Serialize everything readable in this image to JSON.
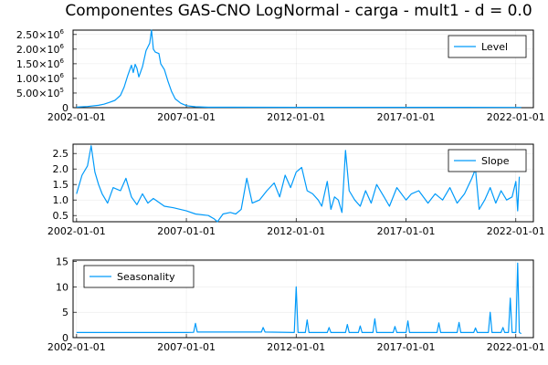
{
  "chart_data": [
    {
      "type": "line",
      "title": "Componentes GAS-CNO LogNormal - carga - mult1 - d = 0.0",
      "xlabel": "",
      "ylabel": "",
      "x_range": [
        "2002-01-01",
        "2022-01-01"
      ],
      "x_ticks": [
        "2002-01-01",
        "2007-01-01",
        "2012-01-01",
        "2017-01-01",
        "2022-01-01"
      ],
      "ylim": [
        0,
        2650000
      ],
      "y_ticks": [
        {
          "value": 0,
          "label": "0"
        },
        {
          "value": 500000,
          "label": "5.00×10",
          "exp": "5"
        },
        {
          "value": 1000000,
          "label": "1.00×10",
          "exp": "6"
        },
        {
          "value": 1500000,
          "label": "1.50×10",
          "exp": "6"
        },
        {
          "value": 2000000,
          "label": "2.00×10",
          "exp": "6"
        },
        {
          "value": 2500000,
          "label": "2.50×10",
          "exp": "6"
        }
      ],
      "grid": true,
      "legend_position": "top-right",
      "series": [
        {
          "name": "Level",
          "color": "#009AFA",
          "points": [
            [
              "2002-01-01",
              20000
            ],
            [
              "2002-07-01",
              40000
            ],
            [
              "2003-01-01",
              80000
            ],
            [
              "2003-04-01",
              120000
            ],
            [
              "2003-07-01",
              180000
            ],
            [
              "2003-10-01",
              250000
            ],
            [
              "2004-01-01",
              420000
            ],
            [
              "2004-03-01",
              700000
            ],
            [
              "2004-05-01",
              1100000
            ],
            [
              "2004-07-01",
              1450000
            ],
            [
              "2004-08-01",
              1200000
            ],
            [
              "2004-09-01",
              1480000
            ],
            [
              "2004-10-01",
              1350000
            ],
            [
              "2004-11-01",
              1050000
            ],
            [
              "2005-01-01",
              1400000
            ],
            [
              "2005-03-01",
              1950000
            ],
            [
              "2005-05-01",
              2200000
            ],
            [
              "2005-06-01",
              2650000
            ],
            [
              "2005-07-01",
              2000000
            ],
            [
              "2005-08-01",
              1900000
            ],
            [
              "2005-10-01",
              1850000
            ],
            [
              "2005-11-01",
              1500000
            ],
            [
              "2006-01-01",
              1300000
            ],
            [
              "2006-03-01",
              900000
            ],
            [
              "2006-05-01",
              550000
            ],
            [
              "2006-07-01",
              300000
            ],
            [
              "2006-10-01",
              150000
            ],
            [
              "2007-01-01",
              70000
            ],
            [
              "2007-06-01",
              30000
            ],
            [
              "2008-01-01",
              15000
            ],
            [
              "2012-01-01",
              12000
            ],
            [
              "2017-01-01",
              11000
            ],
            [
              "2022-01-01",
              10000
            ],
            [
              "2022-04-01",
              10000
            ]
          ]
        }
      ]
    },
    {
      "type": "line",
      "title": "",
      "xlabel": "",
      "ylabel": "",
      "x_range": [
        "2002-01-01",
        "2022-01-01"
      ],
      "x_ticks": [
        "2002-01-01",
        "2007-01-01",
        "2012-01-01",
        "2017-01-01",
        "2022-01-01"
      ],
      "ylim": [
        0.3,
        2.8
      ],
      "y_ticks": [
        {
          "value": 0.5,
          "label": "0.5"
        },
        {
          "value": 1.0,
          "label": "1.0"
        },
        {
          "value": 1.5,
          "label": "1.5"
        },
        {
          "value": 2.0,
          "label": "2.0"
        },
        {
          "value": 2.5,
          "label": "2.5"
        }
      ],
      "grid": true,
      "legend_position": "top-right",
      "series": [
        {
          "name": "Slope",
          "color": "#009AFA",
          "points": [
            [
              "2002-01-01",
              1.2
            ],
            [
              "2002-04-01",
              1.8
            ],
            [
              "2002-07-01",
              2.1
            ],
            [
              "2002-09-01",
              2.75
            ],
            [
              "2002-11-01",
              1.9
            ],
            [
              "2003-01-01",
              1.5
            ],
            [
              "2003-03-01",
              1.2
            ],
            [
              "2003-06-01",
              0.9
            ],
            [
              "2003-09-01",
              1.4
            ],
            [
              "2004-01-01",
              1.3
            ],
            [
              "2004-04-01",
              1.7
            ],
            [
              "2004-07-01",
              1.1
            ],
            [
              "2004-10-01",
              0.85
            ],
            [
              "2005-01-01",
              1.2
            ],
            [
              "2005-04-01",
              0.9
            ],
            [
              "2005-07-01",
              1.05
            ],
            [
              "2006-01-01",
              0.8
            ],
            [
              "2006-06-01",
              0.75
            ],
            [
              "2007-01-01",
              0.65
            ],
            [
              "2007-06-01",
              0.55
            ],
            [
              "2008-01-01",
              0.5
            ],
            [
              "2008-04-01",
              0.4
            ],
            [
              "2008-06-01",
              0.3
            ],
            [
              "2008-09-01",
              0.55
            ],
            [
              "2009-01-01",
              0.6
            ],
            [
              "2009-04-01",
              0.55
            ],
            [
              "2009-07-01",
              0.7
            ],
            [
              "2009-10-01",
              1.7
            ],
            [
              "2010-01-01",
              0.9
            ],
            [
              "2010-05-01",
              1.0
            ],
            [
              "2010-09-01",
              1.3
            ],
            [
              "2011-01-01",
              1.55
            ],
            [
              "2011-04-01",
              1.1
            ],
            [
              "2011-07-01",
              1.8
            ],
            [
              "2011-10-01",
              1.4
            ],
            [
              "2012-01-01",
              1.9
            ],
            [
              "2012-04-01",
              2.05
            ],
            [
              "2012-07-01",
              1.3
            ],
            [
              "2012-10-01",
              1.2
            ],
            [
              "2013-01-01",
              1.0
            ],
            [
              "2013-03-01",
              0.8
            ],
            [
              "2013-06-01",
              1.6
            ],
            [
              "2013-08-01",
              0.7
            ],
            [
              "2013-10-01",
              1.1
            ],
            [
              "2013-12-01",
              1.0
            ],
            [
              "2014-02-01",
              0.6
            ],
            [
              "2014-04-01",
              2.6
            ],
            [
              "2014-06-01",
              1.3
            ],
            [
              "2014-09-01",
              1.0
            ],
            [
              "2014-12-01",
              0.8
            ],
            [
              "2015-03-01",
              1.3
            ],
            [
              "2015-06-01",
              0.9
            ],
            [
              "2015-09-01",
              1.5
            ],
            [
              "2016-01-01",
              1.1
            ],
            [
              "2016-04-01",
              0.8
            ],
            [
              "2016-08-01",
              1.4
            ],
            [
              "2017-01-01",
              1.0
            ],
            [
              "2017-04-01",
              1.2
            ],
            [
              "2017-08-01",
              1.3
            ],
            [
              "2018-01-01",
              0.9
            ],
            [
              "2018-05-01",
              1.2
            ],
            [
              "2018-09-01",
              1.0
            ],
            [
              "2019-01-01",
              1.4
            ],
            [
              "2019-05-01",
              0.9
            ],
            [
              "2019-09-01",
              1.2
            ],
            [
              "2020-01-01",
              1.7
            ],
            [
              "2020-03-01",
              2.0
            ],
            [
              "2020-05-01",
              0.7
            ],
            [
              "2020-08-01",
              1.0
            ],
            [
              "2020-11-01",
              1.4
            ],
            [
              "2021-02-01",
              0.9
            ],
            [
              "2021-05-01",
              1.3
            ],
            [
              "2021-08-01",
              1.0
            ],
            [
              "2021-11-01",
              1.1
            ],
            [
              "2022-01-01",
              1.6
            ],
            [
              "2022-02-01",
              0.65
            ],
            [
              "2022-03-01",
              1.75
            ]
          ]
        }
      ]
    },
    {
      "type": "line",
      "title": "",
      "xlabel": "",
      "ylabel": "",
      "x_range": [
        "2002-01-01",
        "2022-01-01"
      ],
      "x_ticks": [
        "2002-01-01",
        "2007-01-01",
        "2012-01-01",
        "2017-01-01",
        "2022-01-01"
      ],
      "ylim": [
        0,
        15.3
      ],
      "y_ticks": [
        {
          "value": 0,
          "label": "0"
        },
        {
          "value": 5,
          "label": "5"
        },
        {
          "value": 10,
          "label": "10"
        },
        {
          "value": 15,
          "label": "15"
        }
      ],
      "grid": true,
      "legend_position": "top-left",
      "series": [
        {
          "name": "Seasonality",
          "color": "#009AFA",
          "points": [
            [
              "2002-01-01",
              1.0
            ],
            [
              "2007-01-01",
              1.0
            ],
            [
              "2007-05-01",
              1.05
            ],
            [
              "2007-06-01",
              2.8
            ],
            [
              "2007-07-01",
              1.1
            ],
            [
              "2009-01-01",
              1.1
            ],
            [
              "2010-06-01",
              1.1
            ],
            [
              "2010-07-01",
              2.0
            ],
            [
              "2010-08-01",
              1.1
            ],
            [
              "2011-12-01",
              1.0
            ],
            [
              "2012-01-01",
              10.0
            ],
            [
              "2012-02-01",
              1.0
            ],
            [
              "2012-06-01",
              1.0
            ],
            [
              "2012-07-01",
              3.5
            ],
            [
              "2012-08-01",
              1.0
            ],
            [
              "2013-06-01",
              1.0
            ],
            [
              "2013-07-01",
              2.0
            ],
            [
              "2013-08-01",
              1.0
            ],
            [
              "2014-04-01",
              1.0
            ],
            [
              "2014-05-01",
              2.6
            ],
            [
              "2014-06-01",
              1.0
            ],
            [
              "2014-11-01",
              1.0
            ],
            [
              "2014-12-01",
              2.3
            ],
            [
              "2015-01-01",
              1.0
            ],
            [
              "2015-07-01",
              1.0
            ],
            [
              "2015-08-01",
              3.7
            ],
            [
              "2015-09-01",
              1.0
            ],
            [
              "2016-06-01",
              1.0
            ],
            [
              "2016-07-01",
              2.2
            ],
            [
              "2016-08-01",
              1.0
            ],
            [
              "2017-01-01",
              1.0
            ],
            [
              "2017-02-01",
              3.3
            ],
            [
              "2017-03-01",
              1.0
            ],
            [
              "2018-06-01",
              1.0
            ],
            [
              "2018-07-01",
              2.9
            ],
            [
              "2018-08-01",
              1.0
            ],
            [
              "2019-05-01",
              1.0
            ],
            [
              "2019-06-01",
              3.0
            ],
            [
              "2019-07-01",
              1.0
            ],
            [
              "2020-02-01",
              1.0
            ],
            [
              "2020-03-01",
              1.9
            ],
            [
              "2020-04-01",
              1.0
            ],
            [
              "2020-10-01",
              1.0
            ],
            [
              "2020-11-01",
              5.0
            ],
            [
              "2020-12-01",
              1.0
            ],
            [
              "2021-05-01",
              1.0
            ],
            [
              "2021-06-01",
              2.0
            ],
            [
              "2021-07-01",
              1.0
            ],
            [
              "2021-09-01",
              1.0
            ],
            [
              "2021-10-01",
              7.8
            ],
            [
              "2021-11-01",
              1.0
            ],
            [
              "2022-01-01",
              1.0
            ],
            [
              "2022-02-01",
              14.7
            ],
            [
              "2022-03-01",
              1.0
            ],
            [
              "2022-04-01",
              0.8
            ]
          ]
        }
      ]
    }
  ]
}
